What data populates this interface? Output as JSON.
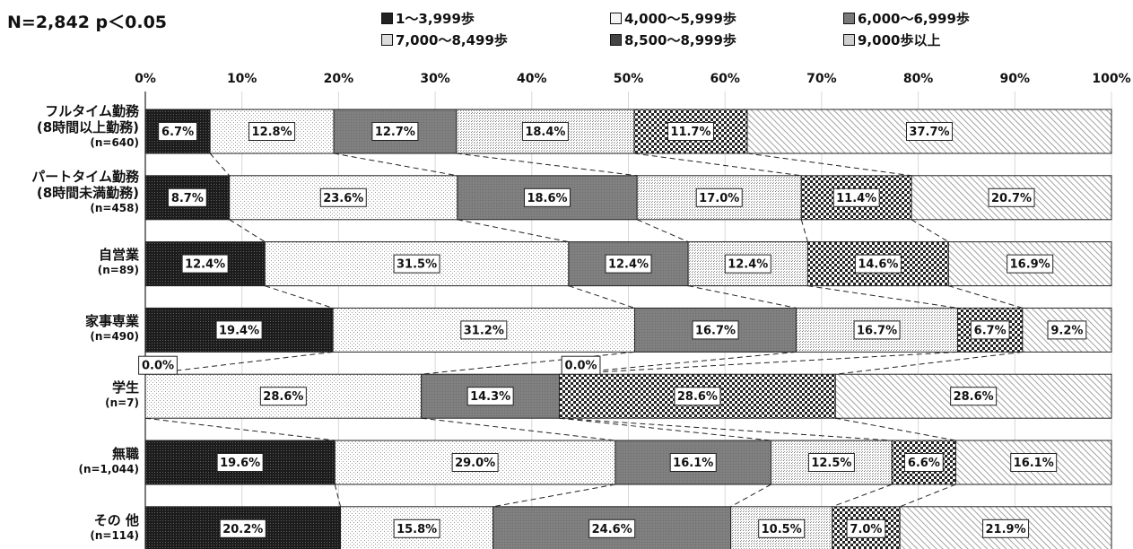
{
  "note": "N=2,842 p＜0.05",
  "legend": [
    {
      "label": "1～3,999歩",
      "pattern": "dark"
    },
    {
      "label": "4,000～5,999歩",
      "pattern": "dotsLight"
    },
    {
      "label": "6,000～6,999歩",
      "pattern": "gray"
    },
    {
      "label": "7,000～8,499歩",
      "pattern": "dotsDense"
    },
    {
      "label": "8,500～8,999歩",
      "pattern": "checker"
    },
    {
      "label": "9,000歩以上",
      "pattern": "hatch"
    }
  ],
  "categories": [
    {
      "name": [
        "フルタイム勤務",
        "(8時間以上勤務)"
      ],
      "n": "(n=640)"
    },
    {
      "name": [
        "パートタイム勤務",
        "(8時間未満勤務)"
      ],
      "n": "(n=458)"
    },
    {
      "name": [
        "自営業"
      ],
      "n": "(n=89)"
    },
    {
      "name": [
        "家事専業"
      ],
      "n": "(n=490)"
    },
    {
      "name": [
        "学生"
      ],
      "n": "(n=7)"
    },
    {
      "name": [
        "無職"
      ],
      "n": "(n=1,044)"
    },
    {
      "name": [
        "その 他"
      ],
      "n": "(n=114)"
    }
  ],
  "chart_data": {
    "type": "bar",
    "orientation": "horizontal",
    "stacked": "percent",
    "xlim": [
      0,
      100
    ],
    "x_ticks": [
      "0%",
      "10%",
      "20%",
      "30%",
      "40%",
      "50%",
      "60%",
      "70%",
      "80%",
      "90%",
      "100%"
    ],
    "categories": [
      "フルタイム勤務 (8時間以上勤務) (n=640)",
      "パートタイム勤務 (8時間未満勤務) (n=458)",
      "自営業 (n=89)",
      "家事専業 (n=490)",
      "学生 (n=7)",
      "無職 (n=1,044)",
      "その 他 (n=114)"
    ],
    "series": [
      {
        "name": "1～3,999歩",
        "values": [
          6.7,
          8.7,
          12.4,
          19.4,
          0.0,
          19.6,
          20.2
        ]
      },
      {
        "name": "4,000～5,999歩",
        "values": [
          12.8,
          23.6,
          31.5,
          31.2,
          28.6,
          29.0,
          15.8
        ]
      },
      {
        "name": "6,000～6,999歩",
        "values": [
          12.7,
          18.6,
          12.4,
          16.7,
          14.3,
          16.1,
          24.6
        ]
      },
      {
        "name": "7,000～8,499歩",
        "values": [
          18.4,
          17.0,
          12.4,
          16.7,
          0.0,
          12.5,
          10.5
        ]
      },
      {
        "name": "8,500～8,999歩",
        "values": [
          11.7,
          11.4,
          14.6,
          6.7,
          28.6,
          6.6,
          7.0
        ]
      },
      {
        "name": "9,000歩以上",
        "values": [
          37.7,
          20.7,
          16.9,
          9.2,
          28.6,
          16.1,
          21.9
        ]
      }
    ],
    "data_labels": [
      [
        "6.7%",
        "12.8%",
        "12.7%",
        "18.4%",
        "11.7%",
        "37.7%"
      ],
      [
        "8.7%",
        "23.6%",
        "18.6%",
        "17.0%",
        "11.4%",
        "20.7%"
      ],
      [
        "12.4%",
        "31.5%",
        "12.4%",
        "12.4%",
        "14.6%",
        "16.9%"
      ],
      [
        "19.4%",
        "31.2%",
        "16.7%",
        "16.7%",
        "6.7%",
        "9.2%"
      ],
      [
        "0.0%",
        "28.6%",
        "14.3%",
        "0.0%",
        "28.6%",
        "28.6%"
      ],
      [
        "19.6%",
        "29.0%",
        "16.1%",
        "12.5%",
        "6.6%",
        "16.1%"
      ],
      [
        "20.2%",
        "15.8%",
        "24.6%",
        "10.5%",
        "7.0%",
        "21.9%"
      ]
    ],
    "series_connector_lines": "dashed",
    "legend_position": "top"
  }
}
